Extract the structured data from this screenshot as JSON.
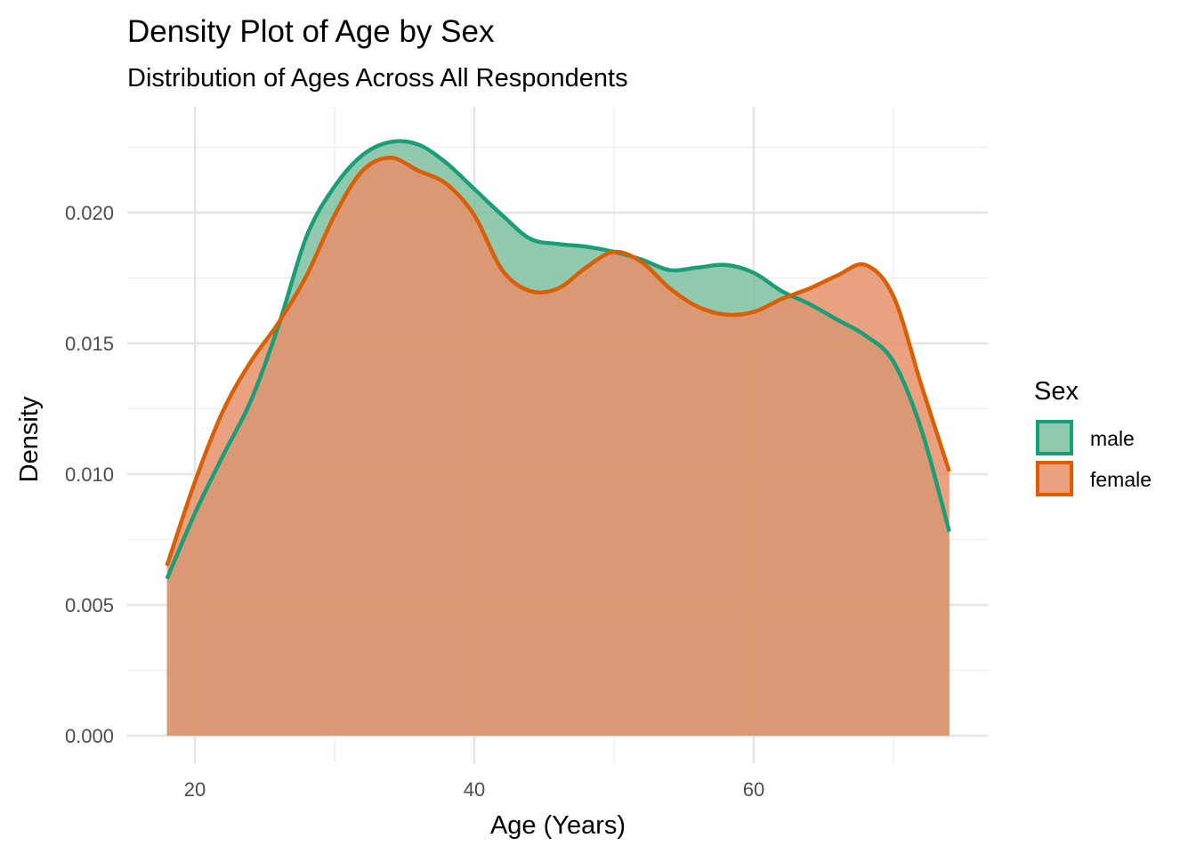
{
  "chart_data": {
    "type": "area",
    "title": "Density Plot of Age by Sex",
    "subtitle": "Distribution of Ages Across All Respondents",
    "xlabel": "Age (Years)",
    "ylabel": "Density",
    "xlim": [
      18,
      74
    ],
    "ylim": [
      0,
      0.023
    ],
    "xticks": [
      20,
      40,
      60
    ],
    "yticks": [
      0.0,
      0.005,
      0.01,
      0.015,
      0.02
    ],
    "ytick_labels": [
      "0.000",
      "0.005",
      "0.010",
      "0.015",
      "0.020"
    ],
    "grid": true,
    "legend": {
      "title": "Sex",
      "position": "right"
    },
    "series": [
      {
        "name": "male",
        "color": "#1b9e77",
        "fill": "#7dbfa0",
        "x": [
          18,
          20,
          22,
          24,
          26,
          28,
          30,
          32,
          34,
          36,
          38,
          40,
          42,
          44,
          46,
          48,
          50,
          52,
          54,
          56,
          58,
          60,
          62,
          64,
          66,
          68,
          70,
          72,
          74
        ],
        "y": [
          0.006,
          0.0085,
          0.0107,
          0.0128,
          0.0157,
          0.0191,
          0.021,
          0.0222,
          0.0227,
          0.0226,
          0.0219,
          0.0209,
          0.0199,
          0.019,
          0.0188,
          0.0187,
          0.0185,
          0.0182,
          0.0178,
          0.0179,
          0.018,
          0.0177,
          0.017,
          0.0165,
          0.0159,
          0.0153,
          0.0143,
          0.0117,
          0.0078
        ]
      },
      {
        "name": "female",
        "color": "#d95f02",
        "fill": "#e6906a",
        "x": [
          18,
          20,
          22,
          24,
          26,
          28,
          30,
          32,
          34,
          36,
          38,
          40,
          42,
          44,
          46,
          48,
          50,
          52,
          54,
          56,
          58,
          60,
          62,
          64,
          66,
          68,
          70,
          72,
          74
        ],
        "y": [
          0.0065,
          0.0097,
          0.0124,
          0.0143,
          0.0158,
          0.0176,
          0.0199,
          0.0216,
          0.0221,
          0.0216,
          0.0211,
          0.0199,
          0.0178,
          0.017,
          0.0171,
          0.0179,
          0.0185,
          0.0181,
          0.0171,
          0.0164,
          0.0161,
          0.0162,
          0.0167,
          0.0171,
          0.0176,
          0.018,
          0.0168,
          0.0134,
          0.0101
        ]
      }
    ]
  }
}
